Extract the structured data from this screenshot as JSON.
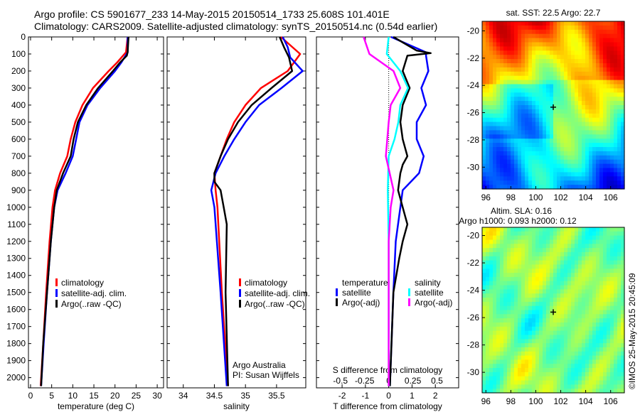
{
  "title_line1": "Argo profile: CS 5901677_233 14-May-2015 20150514_1733 25.608S 101.401E",
  "title_line2": "Climatology: CARS2009. Satellite-adjusted climatology: synTS_20150514.nc (0.54d earlier)",
  "timestamp": "©IMOS 25-May-2015 20:45:09",
  "colors": {
    "climatology": "#ff0000",
    "satellite": "#0000ff",
    "argo": "#000000",
    "sal_satellite": "#00ffff",
    "sal_argo": "#ff00ff"
  },
  "chart_data": [
    {
      "type": "line",
      "name": "temperature",
      "xlabel": "temperature (deg C)",
      "xlim": [
        -0.5,
        31.5
      ],
      "ylim": [
        2060,
        0
      ],
      "xticks": [
        0,
        5,
        10,
        15,
        20,
        25,
        30
      ],
      "yticks": [
        0,
        100,
        200,
        300,
        400,
        500,
        600,
        700,
        800,
        900,
        1000,
        1100,
        1200,
        1300,
        1400,
        1500,
        1600,
        1700,
        1800,
        1900,
        2000
      ],
      "legend": [
        "climatology",
        "satellite-adj. clim.",
        "Argo(..raw -QC)"
      ],
      "series": [
        {
          "name": "climatology",
          "depth": [
            0,
            90,
            150,
            200,
            300,
            400,
            500,
            600,
            700,
            800,
            900,
            1000,
            1200,
            1500,
            1800,
            2050
          ],
          "values": [
            23,
            22.6,
            20.5,
            18.5,
            14.8,
            12.3,
            10.6,
            9.5,
            8.7,
            7,
            5.8,
            5.2,
            4.5,
            3.7,
            3,
            2.4
          ]
        },
        {
          "name": "satellite-adj. clim.",
          "depth": [
            0,
            90,
            150,
            200,
            300,
            400,
            500,
            600,
            700,
            800,
            900,
            1000,
            1200,
            1500,
            1800,
            2050
          ],
          "values": [
            23,
            23,
            21.5,
            20,
            16.5,
            13.5,
            11.6,
            10.8,
            10,
            8.3,
            6.4,
            5.6,
            4.8,
            3.9,
            3.1,
            2.5
          ]
        },
        {
          "name": "Argo(..raw -QC)",
          "depth": [
            0,
            90,
            110,
            150,
            200,
            300,
            400,
            500,
            600,
            700,
            800,
            900,
            1000,
            1200,
            1500,
            1800,
            2050
          ],
          "values": [
            23.2,
            23,
            22.8,
            21.2,
            19.5,
            16,
            13.2,
            11.2,
            10.2,
            9.5,
            7.7,
            6.2,
            5.6,
            4.8,
            3.9,
            3,
            2.5
          ]
        }
      ]
    },
    {
      "type": "line",
      "name": "salinity",
      "xlabel": "salinity",
      "xlim": [
        33.74,
        35.97
      ],
      "ylim": [
        2060,
        0
      ],
      "xticks": [
        34,
        34.5,
        35,
        35.5
      ],
      "xtick_labels": [
        "34",
        "34.5",
        "35",
        "35.5"
      ],
      "legend": [
        "climatology",
        "satellite-adj. clim.",
        "Argo(..raw -QC)"
      ],
      "annotation": [
        "Argo Australia",
        "PI: Susan Wijffels"
      ],
      "series": [
        {
          "name": "climatology",
          "depth": [
            0,
            100,
            200,
            300,
            400,
            500,
            600,
            700,
            800,
            900,
            1000,
            1500,
            2050
          ],
          "values": [
            35.57,
            35.88,
            35.68,
            35.25,
            35.0,
            34.82,
            34.7,
            34.6,
            34.5,
            34.52,
            34.55,
            34.62,
            34.72
          ]
        },
        {
          "name": "satellite-adj. clim.",
          "depth": [
            0,
            60,
            120,
            200,
            300,
            400,
            500,
            600,
            700,
            800,
            900,
            1000,
            1500,
            2050
          ],
          "values": [
            35.6,
            35.68,
            35.72,
            35.92,
            35.58,
            35.22,
            35.0,
            34.82,
            34.66,
            34.52,
            34.45,
            34.5,
            34.6,
            34.7
          ]
        },
        {
          "name": "Argo(..raw -QC)",
          "depth": [
            0,
            60,
            120,
            200,
            300,
            400,
            500,
            600,
            700,
            800,
            850,
            900,
            1000,
            1100,
            1500,
            2050
          ],
          "values": [
            35.55,
            35.62,
            35.7,
            35.75,
            35.42,
            35.1,
            34.88,
            34.72,
            34.6,
            34.5,
            34.5,
            34.6,
            34.65,
            34.7,
            34.68,
            34.72
          ]
        }
      ]
    },
    {
      "type": "line",
      "name": "difference",
      "xlabel": "T difference from climatology",
      "xlabel_top": "S difference from climatology",
      "xlim": [
        -3.1,
        3.0
      ],
      "xticks": [
        -2,
        -1,
        0,
        1,
        2
      ],
      "s_xticks": [
        -0.5,
        -0.25,
        0,
        0.25,
        0.5
      ],
      "s_xtick_labels": [
        "-0.5",
        "-0.25",
        "0",
        "0.25",
        "0.5"
      ],
      "s_scale": 4.14,
      "ylim": [
        2060,
        0
      ],
      "legend_temperature_title": "temperature",
      "legend_salinity_title": "salinity",
      "legend": {
        "t_sat": "satellite",
        "t_argo": "Argo(-adj)",
        "s_sat": "satellite",
        "s_argo": "Argo(-adj)"
      },
      "series": [
        {
          "name": "T satellite",
          "kind": "T",
          "depth": [
            0,
            90,
            110,
            200,
            300,
            400,
            500,
            600,
            700,
            800,
            900,
            1000,
            1200,
            1500,
            2050
          ],
          "values": [
            0.1,
            1.6,
            1.6,
            1.7,
            1.4,
            1.6,
            1.2,
            1.2,
            1.5,
            1.3,
            0.6,
            0.5,
            0.3,
            0.2,
            0.05
          ]
        },
        {
          "name": "T Argo(-adj)",
          "kind": "T",
          "depth": [
            0,
            80,
            95,
            110,
            200,
            300,
            400,
            500,
            600,
            700,
            750,
            800,
            900,
            1000,
            1100,
            1200,
            1300,
            1500,
            2050
          ],
          "values": [
            0.2,
            1.2,
            1.8,
            0.8,
            0.6,
            0.9,
            0.6,
            0.5,
            0.6,
            0.8,
            0.6,
            0.5,
            0.4,
            0.6,
            0.8,
            0.6,
            0.45,
            0.2,
            0.05
          ]
        },
        {
          "name": "S satellite",
          "kind": "S",
          "depth": [
            0,
            100,
            200,
            300,
            400,
            500,
            600,
            700,
            900,
            1200,
            2050
          ],
          "values": [
            0,
            -0.02,
            0.12,
            0.2,
            0.12,
            0.1,
            0.06,
            0.0,
            -0.01,
            0.0,
            0.0
          ]
        },
        {
          "name": "S Argo(-adj)",
          "kind": "S",
          "depth": [
            0,
            100,
            200,
            300,
            400,
            500,
            700,
            900,
            1000,
            1200,
            2050
          ],
          "values": [
            -0.26,
            -0.2,
            0.05,
            0.12,
            0.02,
            0.0,
            -0.03,
            0.05,
            0.02,
            0.0,
            0.0
          ]
        }
      ]
    }
  ],
  "maps": [
    {
      "title": "sat. SST: 22.5 Argo: 22.7",
      "lon_ticks": [
        96,
        98,
        100,
        102,
        104,
        106
      ],
      "lat_ticks": [
        -20,
        -22,
        -24,
        -26,
        -28,
        -30
      ],
      "lon_range": [
        95.7,
        107.1
      ],
      "lat_range": [
        -19.3,
        -31.6
      ]
    },
    {
      "title1": "Altim. SLA: 0.16",
      "title2": "Argo h1000: 0.093 h2000: 0.12",
      "lon_ticks": [
        96,
        98,
        100,
        102,
        104,
        106
      ],
      "lat_ticks": [
        -20,
        -22,
        -24,
        -26,
        -28,
        -30
      ],
      "lon_range": [
        95.7,
        107.1
      ],
      "lat_range": [
        -19.4,
        -31.5
      ]
    }
  ]
}
